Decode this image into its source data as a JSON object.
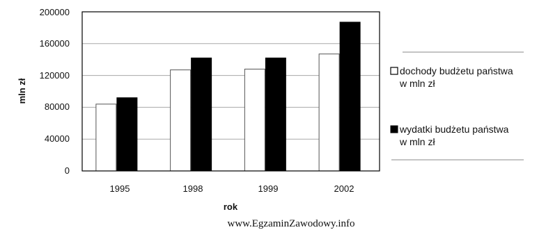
{
  "chart_data": {
    "type": "bar",
    "categories": [
      "1995",
      "1998",
      "1999",
      "2002"
    ],
    "series": [
      {
        "name": "dochody budżetu państwa w mln zł",
        "values": [
          84000,
          127000,
          128000,
          147000
        ],
        "color": "#ffffff"
      },
      {
        "name": "wydatki budżetu państwa w mln zł",
        "values": [
          92000,
          142000,
          142000,
          187000
        ],
        "color": "#000000"
      }
    ],
    "yticks": [
      "0",
      "40000",
      "80000",
      "120000",
      "160000",
      "200000"
    ],
    "ylim": [
      0,
      200000
    ],
    "xlabel": "rok",
    "ylabel": "mln zł",
    "grid": true,
    "legend_position": "right",
    "legend": [
      {
        "line1": "dochody budżetu państwa",
        "line2": "w mln zł"
      },
      {
        "line1": "wydatki budżetu państwa",
        "line2": "w mln zł"
      }
    ]
  },
  "watermark": "www.EgzaminZawodowy.info"
}
